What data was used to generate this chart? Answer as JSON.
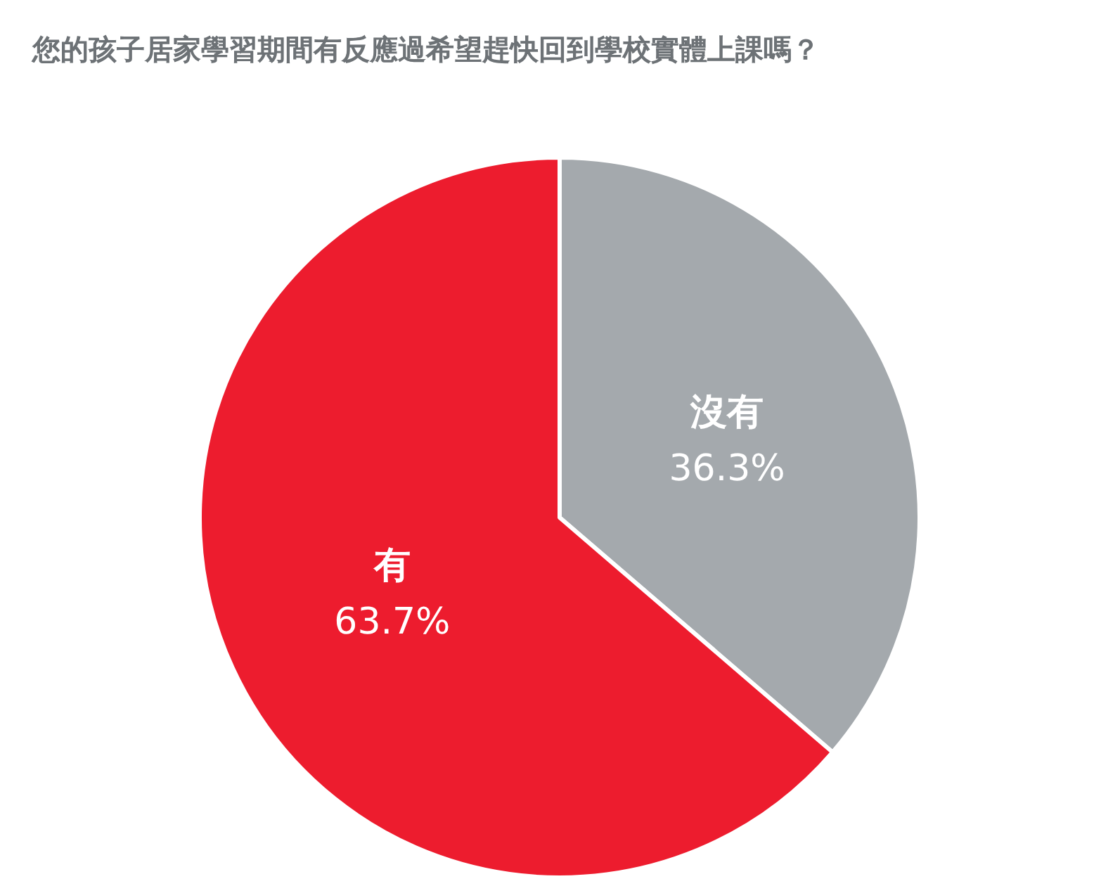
{
  "chart_data": {
    "type": "pie",
    "title": "您的孩子居家學習期間有反應過希望趕快回到學校實體上課嗎？",
    "categories": [
      "沒有",
      "有"
    ],
    "values": [
      36.3,
      63.7
    ],
    "colors": [
      "#a4a9ad",
      "#ed1c2e"
    ],
    "value_labels": [
      "36.3%",
      "63.7%"
    ],
    "legend": false
  }
}
